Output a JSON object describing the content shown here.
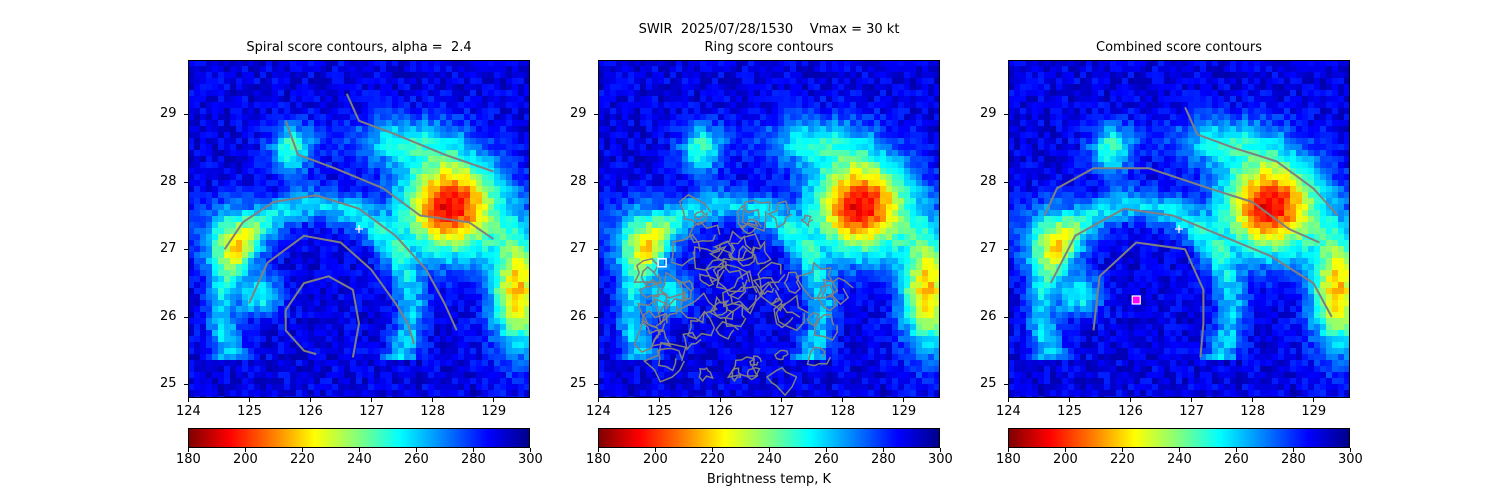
{
  "suptitle": "SWIR  2025/07/28/1530    Vmax = 30 kt",
  "panels": [
    {
      "title": "Spiral score contours, alpha =  2.4"
    },
    {
      "title": "Ring score contours"
    },
    {
      "title": "Combined score contours"
    }
  ],
  "colorbar": {
    "label": "Brightness temp, K",
    "ticks": [
      "180",
      "200",
      "220",
      "240",
      "260",
      "280",
      "300"
    ],
    "range": [
      180,
      300
    ],
    "colormap": "jet_reversed"
  },
  "colors": {
    "contour": "#808080",
    "background_cold": "#00008b",
    "marker": "#ffffff",
    "center_marker_combined": "#ff00ff"
  },
  "chart_data": [
    {
      "type": "heatmap",
      "title": "Spiral score contours, alpha =  2.4",
      "xlim": [
        124,
        129.6
      ],
      "ylim": [
        24.8,
        29.8
      ],
      "xticks": [
        "124",
        "125",
        "126",
        "127",
        "128",
        "129"
      ],
      "yticks": [
        "25",
        "26",
        "27",
        "28",
        "29"
      ],
      "marker": {
        "symbol": "+",
        "x": 126.8,
        "y": 27.3
      },
      "contours": [
        [
          [
            125.6,
            28.9
          ],
          [
            125.8,
            28.4
          ],
          [
            126.4,
            28.2
          ],
          [
            127.2,
            27.9
          ],
          [
            127.8,
            27.5
          ],
          [
            128.6,
            27.4
          ],
          [
            129.0,
            27.15
          ]
        ],
        [
          [
            126.6,
            29.3
          ],
          [
            126.8,
            28.9
          ],
          [
            127.4,
            28.7
          ],
          [
            128.2,
            28.4
          ],
          [
            129.0,
            28.15
          ]
        ],
        [
          [
            124.6,
            27.0
          ],
          [
            124.9,
            27.4
          ],
          [
            125.4,
            27.7
          ],
          [
            126.1,
            27.8
          ],
          [
            126.8,
            27.6
          ],
          [
            127.4,
            27.2
          ],
          [
            127.9,
            26.7
          ],
          [
            128.2,
            26.2
          ],
          [
            128.4,
            25.8
          ]
        ],
        [
          [
            125.0,
            26.2
          ],
          [
            125.3,
            26.8
          ],
          [
            125.9,
            27.2
          ],
          [
            126.5,
            27.1
          ],
          [
            127.0,
            26.7
          ],
          [
            127.4,
            26.2
          ],
          [
            127.6,
            25.9
          ],
          [
            127.7,
            25.6
          ]
        ],
        [
          [
            126.7,
            25.4
          ],
          [
            126.8,
            25.9
          ],
          [
            126.7,
            26.4
          ],
          [
            126.3,
            26.6
          ],
          [
            125.9,
            26.5
          ],
          [
            125.6,
            26.1
          ],
          [
            125.6,
            25.8
          ],
          [
            125.9,
            25.5
          ],
          [
            126.1,
            25.45
          ]
        ]
      ]
    },
    {
      "type": "heatmap",
      "title": "Ring score contours",
      "xlim": [
        124,
        129.6
      ],
      "ylim": [
        24.8,
        29.8
      ],
      "xticks": [
        "124",
        "125",
        "126",
        "127",
        "128",
        "129"
      ],
      "yticks": [
        "25",
        "26",
        "27",
        "28",
        "29"
      ],
      "marker": {
        "symbol": "square",
        "x": 125.05,
        "y": 26.8
      },
      "contour_region": {
        "center_x": 126.3,
        "center_y": 26.3,
        "extent_x": [
          124.6,
          128.0
        ],
        "extent_y": [
          25.1,
          27.7
        ]
      }
    },
    {
      "type": "heatmap",
      "title": "Combined score contours",
      "xlim": [
        124,
        129.6
      ],
      "ylim": [
        24.8,
        29.8
      ],
      "xticks": [
        "124",
        "125",
        "126",
        "127",
        "128",
        "129"
      ],
      "yticks": [
        "25",
        "26",
        "27",
        "28",
        "29"
      ],
      "marker": {
        "symbol": "+",
        "x": 126.8,
        "y": 27.3
      },
      "center_marker": {
        "x": 126.1,
        "y": 26.25
      },
      "contours": [
        [
          [
            124.6,
            27.5
          ],
          [
            124.8,
            27.9
          ],
          [
            125.4,
            28.2
          ],
          [
            126.3,
            28.2
          ],
          [
            127.3,
            27.9
          ],
          [
            128.0,
            27.7
          ],
          [
            128.6,
            27.3
          ],
          [
            129.1,
            27.1
          ]
        ],
        [
          [
            126.9,
            29.1
          ],
          [
            127.1,
            28.7
          ],
          [
            127.7,
            28.5
          ],
          [
            128.4,
            28.3
          ],
          [
            129.0,
            27.9
          ],
          [
            129.4,
            27.5
          ]
        ],
        [
          [
            124.7,
            26.5
          ],
          [
            125.1,
            27.2
          ],
          [
            125.9,
            27.6
          ],
          [
            126.7,
            27.5
          ],
          [
            127.5,
            27.2
          ],
          [
            128.3,
            26.9
          ],
          [
            129.0,
            26.5
          ],
          [
            129.3,
            26.0
          ]
        ],
        [
          [
            125.4,
            25.8
          ],
          [
            125.5,
            26.6
          ],
          [
            126.1,
            27.1
          ],
          [
            126.9,
            27.0
          ],
          [
            127.2,
            26.4
          ],
          [
            127.2,
            25.9
          ],
          [
            127.15,
            25.4
          ]
        ]
      ]
    }
  ]
}
